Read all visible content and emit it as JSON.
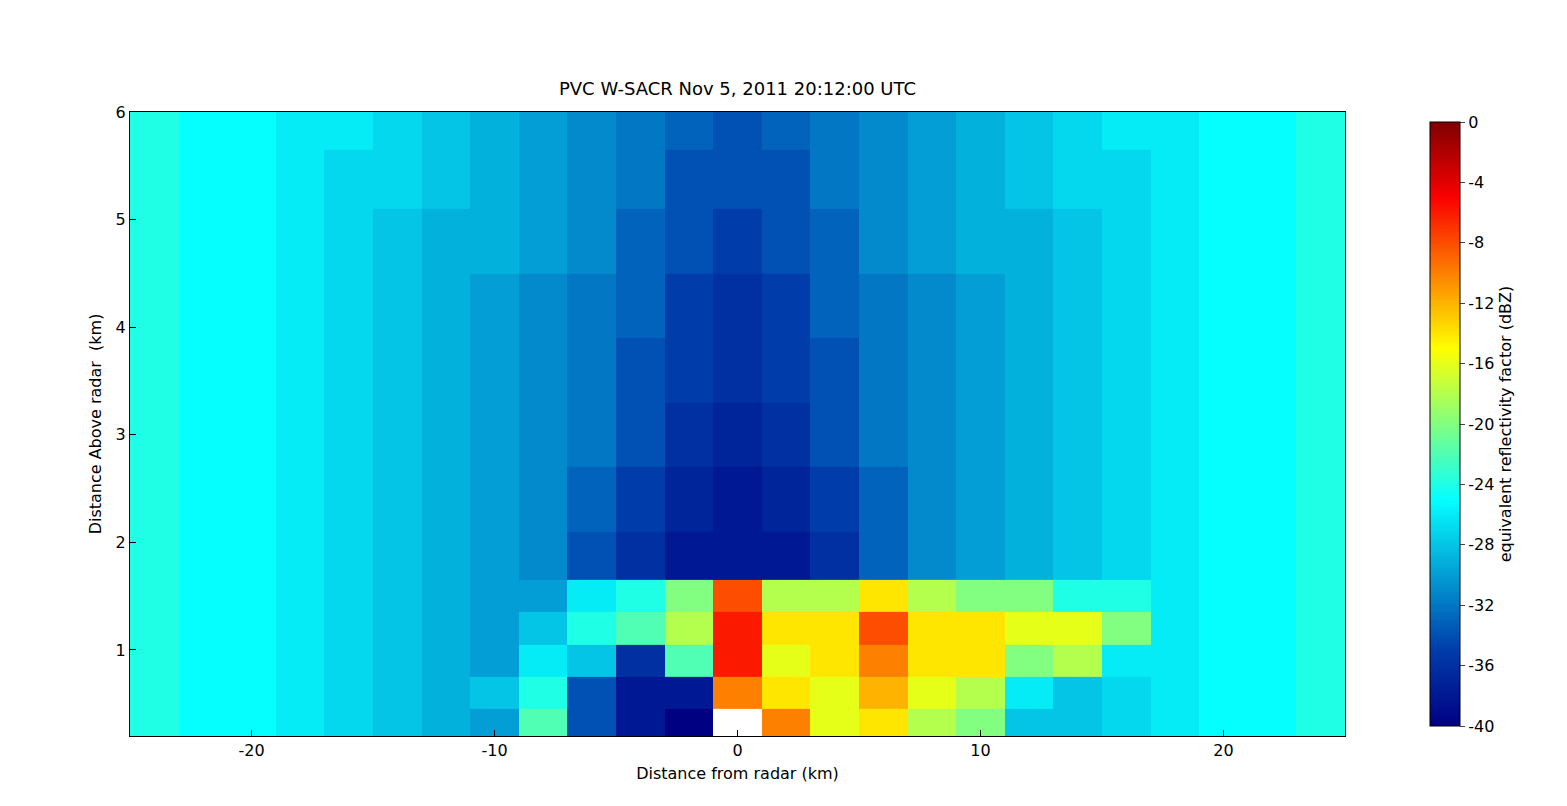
{
  "chart_data": {
    "type": "heatmap",
    "title": "PVC W-SACR Nov 5, 2011 20:12:00 UTC",
    "x_label": "Distance from radar (km)",
    "y_label": "Distance Above radar  (km)",
    "x": [
      -24,
      -22,
      -20,
      -18,
      -16,
      -14,
      -12,
      -10,
      -8,
      -6,
      -4,
      -2,
      0,
      2,
      4,
      6,
      8,
      10,
      12,
      14,
      16,
      18,
      20,
      22,
      24
    ],
    "y": [
      0.3,
      0.6,
      0.9,
      1.2,
      1.5,
      1.8,
      2.4,
      3.0,
      3.6,
      4.2,
      4.8,
      5.4,
      5.9
    ],
    "cells": [
      [
        -24,
        -25,
        -25,
        -26,
        -27,
        -28,
        -29,
        -30,
        -22,
        -34,
        -38,
        -40,
        null,
        -10,
        -16,
        -14,
        -18,
        -20,
        -28,
        -28,
        -27,
        -26,
        -25,
        -25,
        -24
      ],
      [
        -24,
        -25,
        -25,
        -26,
        -27,
        -28,
        -29,
        -28,
        -24,
        -34,
        -38,
        -38,
        -10,
        -14,
        -16,
        -12,
        -16,
        -18,
        -26,
        -28,
        -27,
        -26,
        -25,
        -25,
        -24
      ],
      [
        -24,
        -25,
        -25,
        -26,
        -27,
        -28,
        -29,
        -30,
        -26,
        -28,
        -36,
        -22,
        -6,
        -16,
        -14,
        -10,
        -14,
        -14,
        -20,
        -18,
        -26,
        -26,
        -25,
        -25,
        -24
      ],
      [
        -24,
        -25,
        -25,
        -26,
        -27,
        -28,
        -29,
        -30,
        -28,
        -24,
        -22,
        -18,
        -6,
        -14,
        -14,
        -8,
        -14,
        -14,
        -16,
        -16,
        -20,
        -26,
        -25,
        -25,
        -24
      ],
      [
        -24,
        -25,
        -25,
        -26,
        -27,
        -28,
        -29,
        -30,
        -30,
        -26,
        -24,
        -20,
        -8,
        -18,
        -18,
        -14,
        -18,
        -20,
        -20,
        -24,
        -24,
        -26,
        -25,
        -25,
        -24
      ],
      [
        -24,
        -25,
        -25,
        -26,
        -27,
        -28,
        -29,
        -30,
        -31,
        -34,
        -36,
        -38,
        -38,
        -38,
        -36,
        -33,
        -31,
        -30,
        -29,
        -28,
        -27,
        -26,
        -25,
        -25,
        -24
      ],
      [
        -24,
        -25,
        -25,
        -26,
        -27,
        -28,
        -29,
        -30,
        -31,
        -33,
        -35,
        -37,
        -38,
        -37,
        -35,
        -33,
        -31,
        -30,
        -29,
        -28,
        -27,
        -26,
        -25,
        -25,
        -24
      ],
      [
        -24,
        -25,
        -25,
        -26,
        -27,
        -28,
        -29,
        -30,
        -31,
        -32,
        -34,
        -36,
        -37,
        -36,
        -34,
        -32,
        -31,
        -30,
        -29,
        -28,
        -27,
        -26,
        -25,
        -25,
        -24
      ],
      [
        -24,
        -25,
        -25,
        -26,
        -27,
        -28,
        -29,
        -30,
        -31,
        -32,
        -34,
        -35,
        -36,
        -35,
        -34,
        -32,
        -31,
        -30,
        -29,
        -28,
        -27,
        -26,
        -25,
        -25,
        -24
      ],
      [
        -24,
        -25,
        -25,
        -26,
        -27,
        -28,
        -29,
        -30,
        -31,
        -32,
        -33,
        -35,
        -36,
        -35,
        -33,
        -32,
        -31,
        -30,
        -29,
        -28,
        -27,
        -26,
        -25,
        -25,
        -24
      ],
      [
        -24,
        -25,
        -25,
        -26,
        -27,
        -28,
        -29,
        -29,
        -30,
        -31,
        -33,
        -34,
        -35,
        -34,
        -33,
        -31,
        -30,
        -29,
        -29,
        -28,
        -27,
        -26,
        -25,
        -25,
        -24
      ],
      [
        -24,
        -25,
        -25,
        -26,
        -27,
        -27,
        -28,
        -29,
        -30,
        -31,
        -32,
        -34,
        -34,
        -34,
        -32,
        -31,
        -30,
        -29,
        -28,
        -27,
        -27,
        -26,
        -25,
        -25,
        -24
      ],
      [
        -24,
        -25,
        -25,
        -26,
        -26,
        -27,
        -28,
        -29,
        -30,
        -31,
        -32,
        -33,
        -34,
        -33,
        -32,
        -31,
        -30,
        -29,
        -28,
        -27,
        -26,
        -26,
        -25,
        -25,
        -24
      ]
    ],
    "xlim": [
      -25,
      25
    ],
    "xticks": [
      -20,
      -10,
      0,
      10,
      20
    ],
    "ylim": [
      0.2,
      6
    ],
    "yticks": [
      1,
      2,
      3,
      4,
      5,
      6
    ],
    "colorbar": {
      "title": "equivalent reflectivity factor (dBZ)",
      "range": [
        -40,
        0
      ],
      "ticks": [
        0,
        -4,
        -8,
        -12,
        -16,
        -20,
        -24,
        -28,
        -32,
        -36,
        -40
      ]
    },
    "color": "jet",
    "grid": false
  }
}
